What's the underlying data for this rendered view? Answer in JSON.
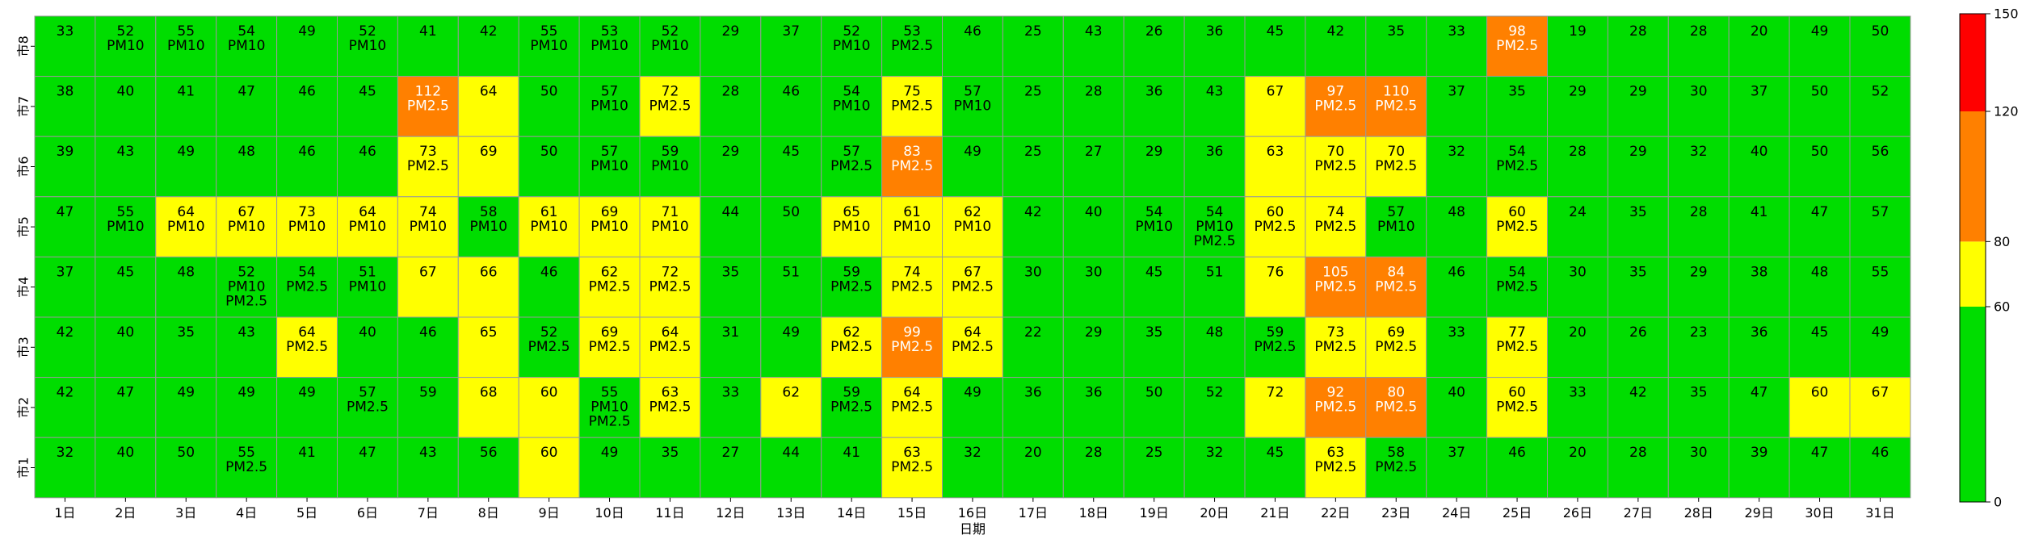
{
  "chart_data": {
    "type": "heatmap",
    "title": "",
    "xlabel": "日期",
    "ylabel": "",
    "x_categories": [
      "1日",
      "2日",
      "3日",
      "4日",
      "5日",
      "6日",
      "7日",
      "8日",
      "9日",
      "10日",
      "11日",
      "12日",
      "13日",
      "14日",
      "15日",
      "16日",
      "17日",
      "18日",
      "19日",
      "20日",
      "21日",
      "22日",
      "23日",
      "24日",
      "25日",
      "26日",
      "27日",
      "28日",
      "29日",
      "30日",
      "31日"
    ],
    "y_categories": [
      "市8",
      "市7",
      "市6",
      "市5",
      "市4",
      "市3",
      "市2",
      "市1"
    ],
    "values": [
      [
        33,
        52,
        55,
        54,
        49,
        52,
        41,
        42,
        55,
        53,
        52,
        29,
        37,
        52,
        53,
        46,
        25,
        43,
        26,
        36,
        45,
        42,
        35,
        33,
        98,
        19,
        28,
        28,
        20,
        49,
        50
      ],
      [
        38,
        40,
        41,
        47,
        46,
        45,
        112,
        64,
        50,
        57,
        72,
        28,
        46,
        54,
        75,
        57,
        25,
        28,
        36,
        43,
        67,
        97,
        110,
        37,
        35,
        29,
        29,
        30,
        37,
        50,
        52
      ],
      [
        39,
        43,
        49,
        48,
        46,
        46,
        73,
        69,
        50,
        57,
        59,
        29,
        45,
        57,
        83,
        49,
        25,
        27,
        29,
        36,
        63,
        70,
        70,
        32,
        54,
        28,
        29,
        32,
        40,
        50,
        56
      ],
      [
        47,
        55,
        64,
        67,
        73,
        64,
        74,
        58,
        61,
        69,
        71,
        44,
        50,
        65,
        61,
        62,
        42,
        40,
        54,
        54,
        60,
        74,
        57,
        48,
        60,
        24,
        35,
        28,
        41,
        47,
        57
      ],
      [
        37,
        45,
        48,
        52,
        54,
        51,
        67,
        66,
        46,
        62,
        72,
        35,
        51,
        59,
        74,
        67,
        30,
        30,
        45,
        51,
        76,
        105,
        84,
        46,
        54,
        30,
        35,
        29,
        38,
        48,
        55
      ],
      [
        42,
        40,
        35,
        43,
        64,
        40,
        46,
        65,
        52,
        69,
        64,
        31,
        49,
        62,
        99,
        64,
        22,
        29,
        35,
        48,
        59,
        73,
        69,
        33,
        77,
        20,
        26,
        23,
        36,
        45,
        49
      ],
      [
        42,
        47,
        49,
        49,
        49,
        57,
        59,
        68,
        60,
        55,
        63,
        33,
        62,
        59,
        64,
        49,
        36,
        36,
        50,
        52,
        72,
        92,
        80,
        40,
        60,
        33,
        42,
        35,
        47,
        60,
        67
      ],
      [
        32,
        40,
        50,
        55,
        41,
        47,
        43,
        56,
        60,
        49,
        35,
        27,
        44,
        41,
        63,
        32,
        20,
        28,
        25,
        32,
        45,
        63,
        58,
        37,
        46,
        20,
        28,
        30,
        39,
        47,
        46
      ]
    ],
    "pollutants": [
      [
        "",
        "PM10",
        "PM10",
        "PM10",
        "",
        "PM10",
        "",
        "",
        "PM10",
        "PM10",
        "PM10",
        "",
        "",
        "PM10",
        "PM2.5",
        "",
        "",
        "",
        "",
        "",
        "",
        "",
        "",
        "",
        "PM2.5",
        "",
        "",
        "",
        "",
        "",
        ""
      ],
      [
        "",
        "",
        "",
        "",
        "",
        "",
        "PM2.5",
        "",
        "",
        "PM10",
        "PM2.5",
        "",
        "",
        "PM10",
        "PM2.5",
        "PM10",
        "",
        "",
        "",
        "",
        "",
        "PM2.5",
        "PM2.5",
        "",
        "",
        "",
        "",
        "",
        "",
        "",
        ""
      ],
      [
        "",
        "",
        "",
        "",
        "",
        "",
        "PM2.5",
        "",
        "",
        "PM10",
        "PM10",
        "",
        "",
        "PM2.5",
        "PM2.5",
        "",
        "",
        "",
        "",
        "",
        "",
        "PM2.5",
        "PM2.5",
        "",
        "PM2.5",
        "",
        "",
        "",
        "",
        "",
        ""
      ],
      [
        "",
        "PM10",
        "PM10",
        "PM10",
        "PM10",
        "PM10",
        "PM10",
        "PM10",
        "PM10",
        "PM10",
        "PM10",
        "",
        "",
        "PM10",
        "PM10",
        "PM10",
        "",
        "",
        "PM10",
        "PM10\nPM2.5",
        "PM2.5",
        "PM2.5",
        "PM10",
        "",
        "PM2.5",
        "",
        "",
        "",
        "",
        "",
        ""
      ],
      [
        "",
        "",
        "",
        "PM10\nPM2.5",
        "PM2.5",
        "PM10",
        "",
        "",
        "",
        "PM2.5",
        "PM2.5",
        "",
        "",
        "PM2.5",
        "PM2.5",
        "PM2.5",
        "",
        "",
        "",
        "",
        "",
        "PM2.5",
        "PM2.5",
        "",
        "PM2.5",
        "",
        "",
        "",
        "",
        "",
        ""
      ],
      [
        "",
        "",
        "",
        "",
        "PM2.5",
        "",
        "",
        "",
        "PM2.5",
        "PM2.5",
        "PM2.5",
        "",
        "",
        "PM2.5",
        "PM2.5",
        "PM2.5",
        "",
        "",
        "",
        "",
        "PM2.5",
        "PM2.5",
        "PM2.5",
        "",
        "PM2.5",
        "",
        "",
        "",
        "",
        "",
        ""
      ],
      [
        "",
        "",
        "",
        "",
        "",
        "PM2.5",
        "",
        "",
        "",
        "PM10\nPM2.5",
        "PM2.5",
        "",
        "",
        "PM2.5",
        "PM2.5",
        "",
        "",
        "",
        "",
        "",
        "",
        "PM2.5",
        "PM2.5",
        "",
        "PM2.5",
        "",
        "",
        "",
        "",
        "",
        ""
      ],
      [
        "",
        "",
        "",
        "PM2.5",
        "",
        "",
        "",
        "",
        "",
        "",
        "",
        "",
        "",
        "",
        "PM2.5",
        "",
        "",
        "",
        "",
        "",
        "",
        "PM2.5",
        "PM2.5",
        "",
        "",
        "",
        "",
        "",
        "",
        "",
        ""
      ]
    ],
    "color_scale": {
      "bounds": [
        0,
        60,
        80,
        120,
        150
      ],
      "colors": [
        "#00dd00",
        "#ffff00",
        "#ff8000",
        "#ff0000"
      ],
      "ticks": [
        "0",
        "60",
        "80",
        "120",
        "150"
      ]
    },
    "grid": false
  }
}
